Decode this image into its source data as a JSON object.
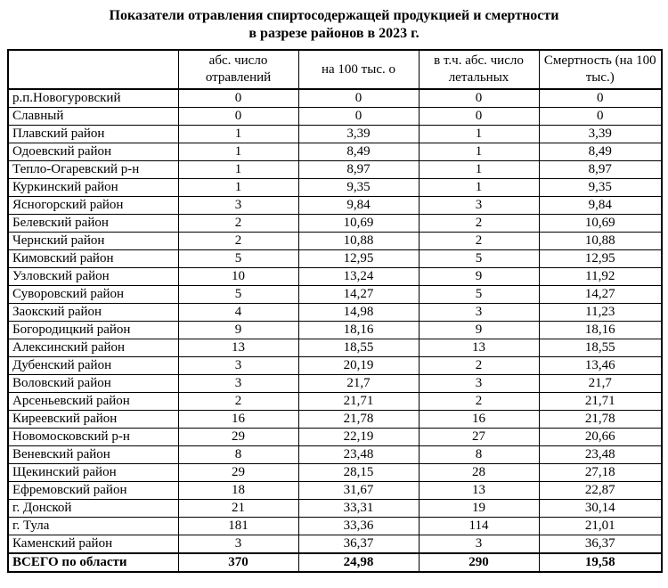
{
  "title": {
    "line1": "Показатели отравления спиртосодержащей продукцией и смертности",
    "line2": "в разрезе районов в 2023 г."
  },
  "table": {
    "headers": [
      "",
      "абс. число отравлений",
      "на 100 тыс. о",
      "в т.ч. абс. число летальных",
      "Смертность (на 100 тыс.)"
    ],
    "rows": [
      [
        "р.п.Новогуровский",
        "0",
        "0",
        "0",
        "0"
      ],
      [
        "Славный",
        "0",
        "0",
        "0",
        "0"
      ],
      [
        "Плавский район",
        "1",
        "3,39",
        "1",
        "3,39"
      ],
      [
        "Одоевский район",
        "1",
        "8,49",
        "1",
        "8,49"
      ],
      [
        "Тепло-Огаревский р-н",
        "1",
        "8,97",
        "1",
        "8,97"
      ],
      [
        "Куркинский район",
        "1",
        "9,35",
        "1",
        "9,35"
      ],
      [
        "Ясногорский район",
        "3",
        "9,84",
        "3",
        "9,84"
      ],
      [
        "Белевский район",
        "2",
        "10,69",
        "2",
        "10,69"
      ],
      [
        "Чернский район",
        "2",
        "10,88",
        "2",
        "10,88"
      ],
      [
        "Кимовский район",
        "5",
        "12,95",
        "5",
        "12,95"
      ],
      [
        "Узловский район",
        "10",
        "13,24",
        "9",
        "11,92"
      ],
      [
        "Суворовский район",
        "5",
        "14,27",
        "5",
        "14,27"
      ],
      [
        "Заокский район",
        "4",
        "14,98",
        "3",
        "11,23"
      ],
      [
        "Богородицкий район",
        "9",
        "18,16",
        "9",
        "18,16"
      ],
      [
        "Алексинский район",
        "13",
        "18,55",
        "13",
        "18,55"
      ],
      [
        "Дубенский район",
        "3",
        "20,19",
        "2",
        "13,46"
      ],
      [
        "Воловский район",
        "3",
        "21,7",
        "3",
        "21,7"
      ],
      [
        "Арсеньевский район",
        "2",
        "21,71",
        "2",
        "21,71"
      ],
      [
        "Киреевский район",
        "16",
        "21,78",
        "16",
        "21,78"
      ],
      [
        "Новомосковский р-н",
        "29",
        "22,19",
        "27",
        "20,66"
      ],
      [
        "Веневский район",
        "8",
        "23,48",
        "8",
        "23,48"
      ],
      [
        "Щекинский район",
        "29",
        "28,15",
        "28",
        "27,18"
      ],
      [
        "Ефремовский район",
        "18",
        "31,67",
        "13",
        "22,87"
      ],
      [
        "г. Донской",
        "21",
        "33,31",
        "19",
        "30,14"
      ],
      [
        "г. Тула",
        "181",
        "33,36",
        "114",
        "21,01"
      ],
      [
        "Каменский район",
        "3",
        "36,37",
        "3",
        "36,37"
      ]
    ],
    "total_row": [
      "ВСЕГО по области",
      "370",
      "24,98",
      "290",
      "19,58"
    ]
  },
  "colors": {
    "background": "#ffffff",
    "text": "#000000",
    "border": "#000000"
  }
}
